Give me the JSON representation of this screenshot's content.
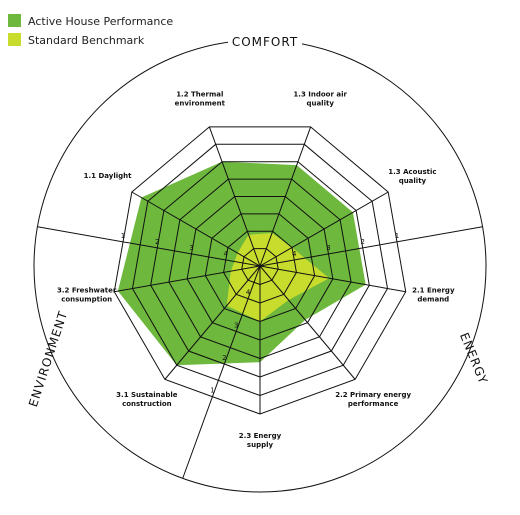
{
  "chart_data": {
    "type": "radar",
    "sections": [
      "COMFORT",
      "ENERGY",
      "ENVIRONMENT"
    ],
    "categories": [
      [
        "2.3 Energy",
        "supply"
      ],
      [
        "3.1 Sustainable",
        "construction"
      ],
      [
        "3.2 Freshwater",
        "consumption"
      ],
      [
        "1.1 Daylight"
      ],
      [
        "1.2 Thermal",
        "environment"
      ],
      [
        "1.3 Indoor air",
        "quality"
      ],
      [
        "1.3 Acoustic",
        "quality"
      ],
      [
        "2.1 Energy",
        "demand"
      ],
      [
        "2.2 Primary energy",
        "performance"
      ]
    ],
    "series": [
      {
        "name": "Active House Performance",
        "color": "#6db83d",
        "values": [
          2.4,
          1.5,
          1.1,
          1.3,
          2.0,
          2.1,
          2.1,
          2.1,
          3.1
        ]
      },
      {
        "name": "Standard Benchmark",
        "color": "#c8dc2e",
        "values": [
          3.5,
          3.6,
          4.2,
          4.3,
          4.1,
          4.05,
          4.0,
          3.1,
          3.8
        ]
      }
    ],
    "ylim": [
      5,
      1
    ],
    "yticks": [
      1,
      2,
      3,
      4
    ],
    "minor_ticks": [
      1.5,
      2.5,
      3.5,
      4.5
    ]
  }
}
